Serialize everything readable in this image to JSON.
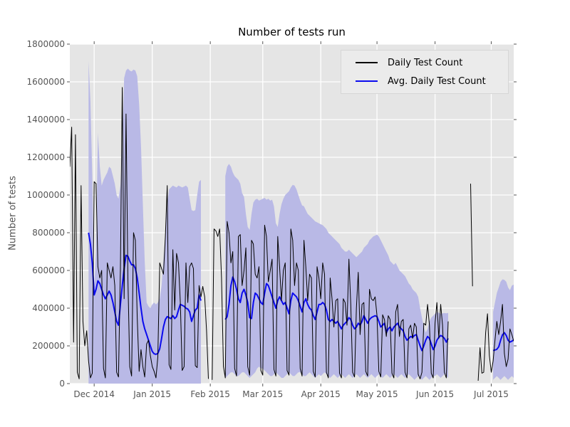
{
  "chart_data": {
    "type": "line",
    "title": "Number of tests run",
    "xlabel": "",
    "ylabel": "Number of tests",
    "grid": true,
    "plot_background": "#e5e5e5",
    "grid_color": "#ffffff",
    "tick_label_color": "#555555",
    "ylim": [
      0,
      1800000
    ],
    "y_ticks": [
      0,
      200000,
      400000,
      600000,
      800000,
      1000000,
      1200000,
      1400000,
      1600000,
      1800000
    ],
    "start_date": "2014-11-18",
    "end_date": "2015-07-13",
    "x_ticks": [
      {
        "label": "Dec 2014",
        "day_index": 13
      },
      {
        "label": "Jan 2015",
        "day_index": 44
      },
      {
        "label": "Feb 2015",
        "day_index": 75
      },
      {
        "label": "Mar 2015",
        "day_index": 103
      },
      {
        "label": "Apr 2015",
        "day_index": 134
      },
      {
        "label": "May 2015",
        "day_index": 164
      },
      {
        "label": "Jun 2015",
        "day_index": 195
      },
      {
        "label": "Jul 2015",
        "day_index": 225
      }
    ],
    "legend": {
      "position": "upper-right",
      "entries": [
        {
          "label": "Daily Test Count",
          "color": "#000000"
        },
        {
          "label": "Avg. Daily Test Count",
          "color": "#0b0bee"
        }
      ]
    },
    "series": [
      {
        "name": "Daily Test Count",
        "color": "#000000",
        "width": 1,
        "values": [
          1150000.0,
          1360000.0,
          220000.0,
          1320000.0,
          60000.0,
          25000.0,
          1050000.0,
          330000.0,
          200000.0,
          280000.0,
          120000.0,
          30000.0,
          55000.0,
          1070000.0,
          1060000.0,
          620000.0,
          560000.0,
          600000.0,
          80000.0,
          30000.0,
          640000.0,
          600000.0,
          560000.0,
          620000.0,
          520000.0,
          60000.0,
          35000.0,
          610000.0,
          1570000.0,
          450000.0,
          1430000.0,
          560000.0,
          90000.0,
          40000.0,
          800000.0,
          760000.0,
          350000.0,
          65000.0,
          180000.0,
          90000.0,
          35000.0,
          210000.0,
          230000.0,
          150000.0,
          90000.0,
          65000.0,
          30000.0,
          140000.0,
          640000.0,
          610000.0,
          580000.0,
          780000.0,
          1050000.0,
          100000.0,
          75000.0,
          710000.0,
          390000.0,
          690000.0,
          640000.0,
          430000.0,
          70000.0,
          90000.0,
          640000.0,
          430000.0,
          620000.0,
          640000.0,
          610000.0,
          95000.0,
          85000.0,
          520000.0,
          460000.0,
          515000.0,
          460000.0,
          280000.0,
          25000.0,
          null,
          20000.0,
          820000.0,
          810000.0,
          780000.0,
          820000.0,
          560000.0,
          90000.0,
          30000.0,
          860000.0,
          800000.0,
          640000.0,
          700000.0,
          80000.0,
          40000.0,
          780000.0,
          790000.0,
          520000.0,
          600000.0,
          720000.0,
          90000.0,
          45000.0,
          760000.0,
          740000.0,
          580000.0,
          560000.0,
          620000.0,
          70000.0,
          45000.0,
          840000.0,
          780000.0,
          540000.0,
          600000.0,
          660000.0,
          75000.0,
          40000.0,
          780000.0,
          620000.0,
          440000.0,
          600000.0,
          640000.0,
          70000.0,
          45000.0,
          820000.0,
          760000.0,
          520000.0,
          640000.0,
          600000.0,
          80000.0,
          40000.0,
          760000.0,
          620000.0,
          440000.0,
          580000.0,
          560000.0,
          65000.0,
          35000.0,
          620000.0,
          560000.0,
          450000.0,
          640000.0,
          580000.0,
          60000.0,
          30000.0,
          560000.0,
          450000.0,
          300000.0,
          440000.0,
          450000.0,
          55000.0,
          30000.0,
          450000.0,
          430000.0,
          310000.0,
          660000.0,
          420000.0,
          60000.0,
          35000.0,
          400000.0,
          590000.0,
          260000.0,
          420000.0,
          430000.0,
          65000.0,
          40000.0,
          500000.0,
          450000.0,
          440000.0,
          460000.0,
          360000.0,
          65000.0,
          35000.0,
          365000.0,
          340000.0,
          250000.0,
          360000.0,
          340000.0,
          55000.0,
          30000.0,
          380000.0,
          420000.0,
          250000.0,
          330000.0,
          340000.0,
          60000.0,
          30000.0,
          290000.0,
          310000.0,
          240000.0,
          320000.0,
          300000.0,
          50000.0,
          25000.0,
          60000.0,
          320000.0,
          310000.0,
          420000.0,
          310000.0,
          55000.0,
          30000.0,
          320000.0,
          430000.0,
          240000.0,
          420000.0,
          310000.0,
          60000.0,
          30000.0,
          330000.0,
          null,
          null,
          null,
          null,
          null,
          null,
          null,
          null,
          null,
          null,
          null,
          1060000.0,
          516000.0,
          null,
          null,
          15000.0,
          190000.0,
          55000.0,
          60000.0,
          270000.0,
          370000.0,
          150000.0,
          60000.0,
          120000.0,
          230000.0,
          330000.0,
          260000.0,
          330000.0,
          420000.0,
          160000.0,
          90000.0,
          130000.0,
          290000.0,
          260000.0,
          225000.0
        ]
      },
      {
        "name": "Avg. Daily Test Count",
        "color": "#0b0bee",
        "width": 2,
        "values": [
          null,
          null,
          null,
          null,
          null,
          null,
          null,
          null,
          null,
          null,
          800000.0,
          740000.0,
          640000.0,
          470000.0,
          500000.0,
          545000.0,
          530000.0,
          500000.0,
          470000.0,
          450000.0,
          470000.0,
          490000.0,
          470000.0,
          430000.0,
          380000.0,
          330000.0,
          310000.0,
          420000.0,
          520000.0,
          610000.0,
          680000.0,
          675000.0,
          650000.0,
          630000.0,
          630000.0,
          610000.0,
          560000.0,
          480000.0,
          400000.0,
          330000.0,
          290000.0,
          260000.0,
          230000.0,
          200000.0,
          170000.0,
          158000.0,
          155000.0,
          160000.0,
          185000.0,
          240000.0,
          300000.0,
          340000.0,
          355000.0,
          350000.0,
          345000.0,
          360000.0,
          345000.0,
          355000.0,
          390000.0,
          420000.0,
          415000.0,
          410000.0,
          400000.0,
          395000.0,
          380000.0,
          330000.0,
          360000.0,
          390000.0,
          400000.0,
          470000.0,
          440000.0,
          null,
          null,
          null,
          null,
          null,
          null,
          null,
          null,
          null,
          null,
          null,
          null,
          340000.0,
          355000.0,
          420000.0,
          520000.0,
          565000.0,
          540000.0,
          500000.0,
          450000.0,
          430000.0,
          480000.0,
          500000.0,
          470000.0,
          430000.0,
          350000.0,
          345000.0,
          430000.0,
          480000.0,
          470000.0,
          450000.0,
          430000.0,
          420000.0,
          480000.0,
          530000.0,
          520000.0,
          490000.0,
          460000.0,
          430000.0,
          400000.0,
          440000.0,
          460000.0,
          440000.0,
          420000.0,
          430000.0,
          400000.0,
          370000.0,
          440000.0,
          480000.0,
          470000.0,
          460000.0,
          440000.0,
          410000.0,
          380000.0,
          430000.0,
          450000.0,
          420000.0,
          400000.0,
          390000.0,
          360000.0,
          340000.0,
          380000.0,
          420000.0,
          420000.0,
          430000.0,
          420000.0,
          390000.0,
          340000.0,
          330000.0,
          340000.0,
          330000.0,
          320000.0,
          330000.0,
          310000.0,
          290000.0,
          310000.0,
          320000.0,
          330000.0,
          350000.0,
          340000.0,
          310000.0,
          290000.0,
          300000.0,
          320000.0,
          310000.0,
          330000.0,
          360000.0,
          340000.0,
          320000.0,
          340000.0,
          350000.0,
          355000.0,
          360000.0,
          355000.0,
          330000.0,
          300000.0,
          310000.0,
          320000.0,
          270000.0,
          290000.0,
          300000.0,
          280000.0,
          300000.0,
          310000.0,
          320000.0,
          300000.0,
          290000.0,
          280000.0,
          250000.0,
          230000.0,
          240000.0,
          250000.0,
          245000.0,
          255000.0,
          260000.0,
          230000.0,
          200000.0,
          175000.0,
          200000.0,
          230000.0,
          250000.0,
          240000.0,
          210000.0,
          180000.0,
          200000.0,
          230000.0,
          245000.0,
          255000.0,
          250000.0,
          240000.0,
          220000.0,
          240000.0,
          null,
          null,
          null,
          null,
          null,
          null,
          null,
          null,
          null,
          null,
          null,
          null,
          null,
          null,
          null,
          null,
          null,
          null,
          null,
          null,
          null,
          null,
          null,
          175000.0,
          178000.0,
          182000.0,
          195000.0,
          230000.0,
          258000.0,
          270000.0,
          255000.0,
          230000.0,
          220000.0,
          225000.0,
          232000.0
        ]
      }
    ],
    "band": {
      "name": "daily-count-variability-band",
      "color": "#b9b9e6",
      "upper": [
        null,
        null,
        null,
        null,
        null,
        null,
        null,
        null,
        null,
        null,
        1710000.0,
        1500000.0,
        1100000.0,
        520000.0,
        700000.0,
        1330000.0,
        1150000.0,
        1050000.0,
        1080000.0,
        1100000.0,
        1120000.0,
        1150000.0,
        1140000.0,
        1100000.0,
        1060000.0,
        1000000.0,
        980000.0,
        1050000.0,
        1250000.0,
        1620000.0,
        1660000.0,
        1670000.0,
        1660000.0,
        1655000.0,
        1665000.0,
        1660000.0,
        1630000.0,
        1480000.0,
        1260000.0,
        950000.0,
        650000.0,
        430000.0,
        410000.0,
        400000.0,
        420000.0,
        430000.0,
        420000.0,
        430000.0,
        450000.0,
        520000.0,
        650000.0,
        800000.0,
        950000.0,
        1030000.0,
        1040000.0,
        1050000.0,
        1045000.0,
        1040000.0,
        1050000.0,
        1045000.0,
        1040000.0,
        1045000.0,
        1050000.0,
        1040000.0,
        980000.0,
        920000.0,
        915000.0,
        920000.0,
        1000000.0,
        1070000.0,
        1080000.0,
        null,
        null,
        null,
        null,
        null,
        null,
        null,
        null,
        null,
        null,
        null,
        null,
        1100000.0,
        1150000.0,
        1165000.0,
        1150000.0,
        1120000.0,
        1100000.0,
        1090000.0,
        1080000.0,
        1060000.0,
        1010000.0,
        990000.0,
        900000.0,
        830000.0,
        815000.0,
        900000.0,
        960000.0,
        975000.0,
        980000.0,
        970000.0,
        975000.0,
        980000.0,
        985000.0,
        975000.0,
        980000.0,
        970000.0,
        975000.0,
        940000.0,
        850000.0,
        830000.0,
        900000.0,
        950000.0,
        980000.0,
        1000000.0,
        1010000.0,
        1020000.0,
        1040000.0,
        1054000.0,
        1050000.0,
        1030000.0,
        1000000.0,
        970000.0,
        945000.0,
        940000.0,
        920000.0,
        900000.0,
        890000.0,
        880000.0,
        870000.0,
        860000.0,
        855000.0,
        850000.0,
        845000.0,
        840000.0,
        830000.0,
        820000.0,
        800000.0,
        790000.0,
        780000.0,
        770000.0,
        760000.0,
        750000.0,
        740000.0,
        720000.0,
        710000.0,
        700000.0,
        700000.0,
        710000.0,
        700000.0,
        690000.0,
        680000.0,
        670000.0,
        680000.0,
        690000.0,
        700000.0,
        720000.0,
        730000.0,
        740000.0,
        760000.0,
        770000.0,
        780000.0,
        785000.0,
        790000.0,
        780000.0,
        760000.0,
        740000.0,
        720000.0,
        700000.0,
        680000.0,
        650000.0,
        640000.0,
        630000.0,
        640000.0,
        620000.0,
        600000.0,
        590000.0,
        580000.0,
        570000.0,
        550000.0,
        530000.0,
        520000.0,
        500000.0,
        490000.0,
        480000.0,
        460000.0,
        400000.0,
        350000.0,
        300000.0,
        270000.0,
        290000.0,
        330000.0,
        350000.0,
        360000.0,
        370000.0,
        380000.0,
        375000.0,
        370000.0,
        372000.0,
        374000.0,
        373000.0,
        375000.0,
        null,
        null,
        null,
        null,
        null,
        null,
        null,
        null,
        null,
        null,
        null,
        null,
        null,
        null,
        null,
        null,
        null,
        null,
        null,
        null,
        null,
        null,
        null,
        380000.0,
        430000.0,
        480000.0,
        510000.0,
        540000.0,
        553000.0,
        550000.0,
        540000.0,
        510000.0,
        495000.0,
        520000.0,
        525000.0
      ],
      "lower": [
        null,
        null,
        null,
        null,
        null,
        null,
        null,
        null,
        null,
        null,
        0,
        0,
        0,
        0,
        0,
        0,
        0,
        0,
        0,
        0,
        0,
        0,
        0,
        0,
        0,
        0,
        0,
        0,
        0,
        0,
        0,
        0,
        0,
        0,
        0,
        0,
        0,
        0,
        0,
        0,
        0,
        0,
        0,
        0,
        0,
        0,
        0,
        0,
        0,
        0,
        0,
        0,
        0,
        0,
        0,
        0,
        0,
        0,
        0,
        0,
        0,
        0,
        0,
        0,
        0,
        0,
        0,
        0,
        0,
        0,
        0,
        null,
        null,
        null,
        null,
        null,
        null,
        null,
        null,
        null,
        null,
        null,
        null,
        30000.0,
        40000.0,
        50000.0,
        60000.0,
        60000.0,
        50000.0,
        40000.0,
        40000.0,
        50000.0,
        60000.0,
        60000.0,
        50000.0,
        40000.0,
        30000.0,
        40000.0,
        50000.0,
        60000.0,
        80000.0,
        90000.0,
        80000.0,
        80000.0,
        70000.0,
        60000.0,
        50000.0,
        40000.0,
        40000.0,
        50000.0,
        60000.0,
        50000.0,
        40000.0,
        30000.0,
        30000.0,
        40000.0,
        50000.0,
        60000.0,
        50000.0,
        40000.0,
        40000.0,
        50000.0,
        60000.0,
        60000.0,
        50000.0,
        40000.0,
        40000.0,
        50000.0,
        60000.0,
        50000.0,
        40000.0,
        30000.0,
        40000.0,
        50000.0,
        40000.0,
        50000.0,
        60000.0,
        50000.0,
        40000.0,
        30000.0,
        40000.0,
        50000.0,
        40000.0,
        30000.0,
        40000.0,
        50000.0,
        40000.0,
        30000.0,
        40000.0,
        50000.0,
        40000.0,
        30000.0,
        40000.0,
        50000.0,
        40000.0,
        30000.0,
        40000.0,
        50000.0,
        40000.0,
        30000.0,
        40000.0,
        50000.0,
        40000.0,
        30000.0,
        40000.0,
        50000.0,
        40000.0,
        30000.0,
        40000.0,
        50000.0,
        40000.0,
        30000.0,
        40000.0,
        50000.0,
        40000.0,
        30000.0,
        40000.0,
        50000.0,
        40000.0,
        30000.0,
        40000.0,
        50000.0,
        40000.0,
        30000.0,
        20000.0,
        30000.0,
        40000.0,
        30000.0,
        20000.0,
        30000.0,
        40000.0,
        30000.0,
        20000.0,
        30000.0,
        40000.0,
        40000.0,
        50000.0,
        40000.0,
        30000.0,
        40000.0,
        50000.0,
        40000.0,
        30000.0,
        null,
        null,
        null,
        null,
        null,
        null,
        null,
        null,
        null,
        null,
        null,
        null,
        null,
        null,
        null,
        null,
        null,
        null,
        null,
        null,
        null,
        null,
        null,
        20000.0,
        30000.0,
        40000.0,
        30000.0,
        20000.0,
        30000.0,
        40000.0,
        30000.0,
        20000.0,
        30000.0,
        40000.0,
        30000.0
      ]
    }
  }
}
